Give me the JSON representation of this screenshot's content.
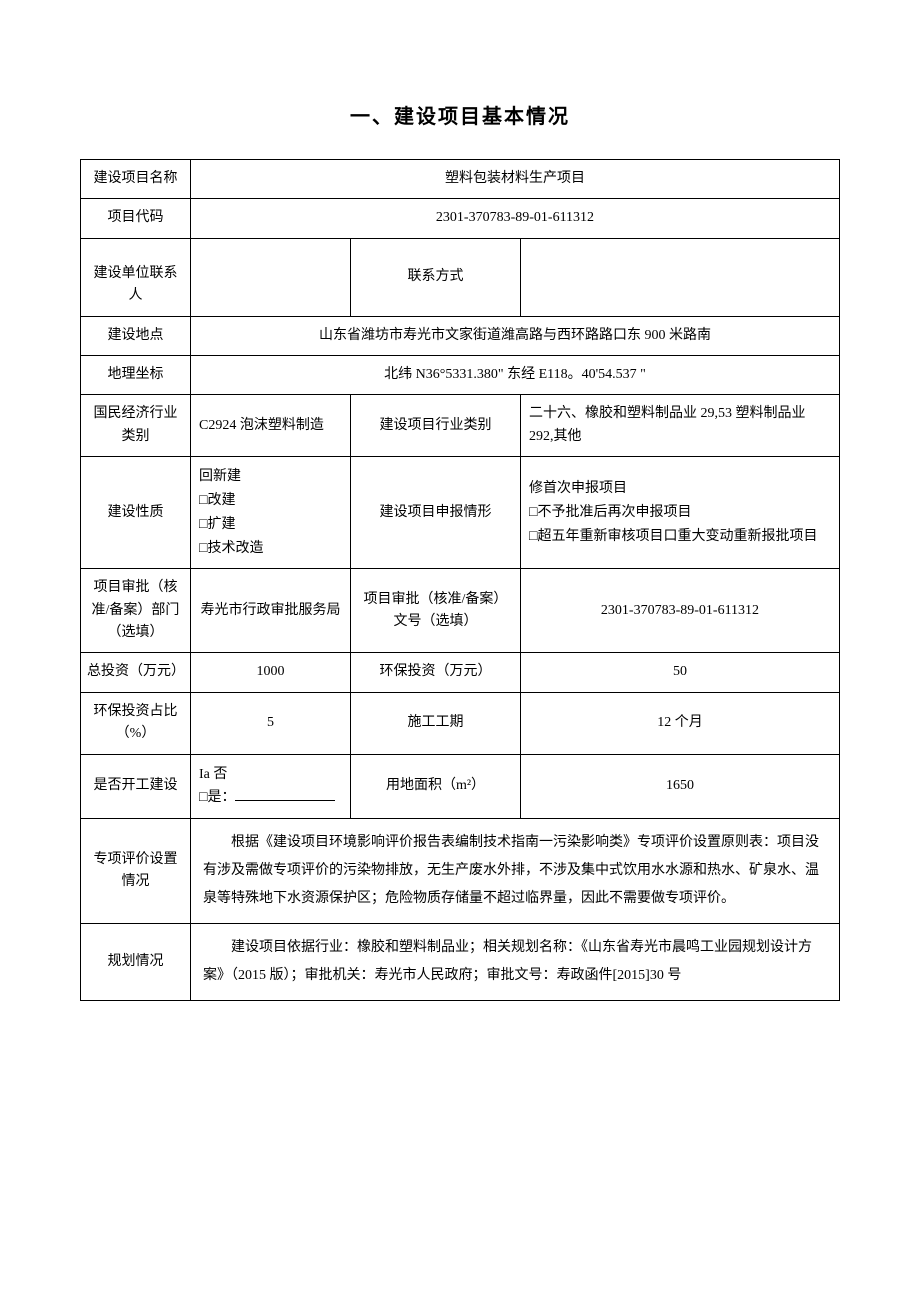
{
  "document": {
    "title": "一、建设项目基本情况",
    "background_color": "#ffffff",
    "text_color": "#000000",
    "border_color": "#000000",
    "title_fontsize": 20,
    "body_fontsize": 14
  },
  "rows": {
    "project_name": {
      "label": "建设项目名称",
      "value": "塑料包装材料生产项目"
    },
    "project_code": {
      "label": "项目代码",
      "value": "2301-370783-89-01-611312"
    },
    "contact": {
      "label": "建设单位联系人",
      "value": "",
      "label2": "联系方式",
      "value2": ""
    },
    "location": {
      "label": "建设地点",
      "value": "山东省潍坊市寿光市文家街道潍高路与西环路路口东 900 米路南"
    },
    "coordinates": {
      "label": "地理坐标",
      "value": "北纬 N36°5331.380\" 东经 E118。40'54.537 \""
    },
    "industry": {
      "label": "国民经济行业类别",
      "value": "C2924 泡沫塑料制造",
      "label2": "建设项目行业类别",
      "value2": "二十六、橡胶和塑料制品业 29,53 塑料制品业 292,其他"
    },
    "nature": {
      "label": "建设性质",
      "options": "回新建\n□改建\n□扩建\n□技术改造",
      "label2": "建设项目申报情形",
      "options2": "修首次申报项目\n□不予批准后再次申报项目\n□超五年重新审核项目口重大变动重新报批项目"
    },
    "approval_dept": {
      "label": "项目审批（核准/备案）部门（选填）",
      "value": "寿光市行政审批服务局",
      "label2": "项目审批（核准/备案）文号（选填）",
      "value2": "2301-370783-89-01-611312"
    },
    "total_invest": {
      "label": "总投资（万元）",
      "value": "1000",
      "label2": "环保投资（万元）",
      "value2": "50"
    },
    "env_ratio": {
      "label": "环保投资占比（%）",
      "value": "5",
      "label2": "施工工期",
      "value2": "12 个月"
    },
    "started": {
      "label": "是否开工建设",
      "options": "Ia 否\n□是：",
      "label2": "用地面积（m²）",
      "value2": "1650"
    },
    "special_eval": {
      "label": "专项评价设置情况",
      "value": "根据《建设项目环境影响评价报告表编制技术指南一污染影响类》专项评价设置原则表：项目没有涉及需做专项评价的污染物排放，无生产废水外排，不涉及集中式饮用水水源和热水、矿泉水、温泉等特殊地下水资源保护区；危险物质存储量不超过临界量，因此不需要做专项评价。"
    },
    "planning": {
      "label": "规划情况",
      "value": "建设项目依据行业：橡胶和塑料制品业；相关规划名称：《山东省寿光市晨鸣工业园规划设计方案》（2015 版）；审批机关：寿光市人民政府；审批文号：寿政函件[2015]30 号"
    }
  }
}
